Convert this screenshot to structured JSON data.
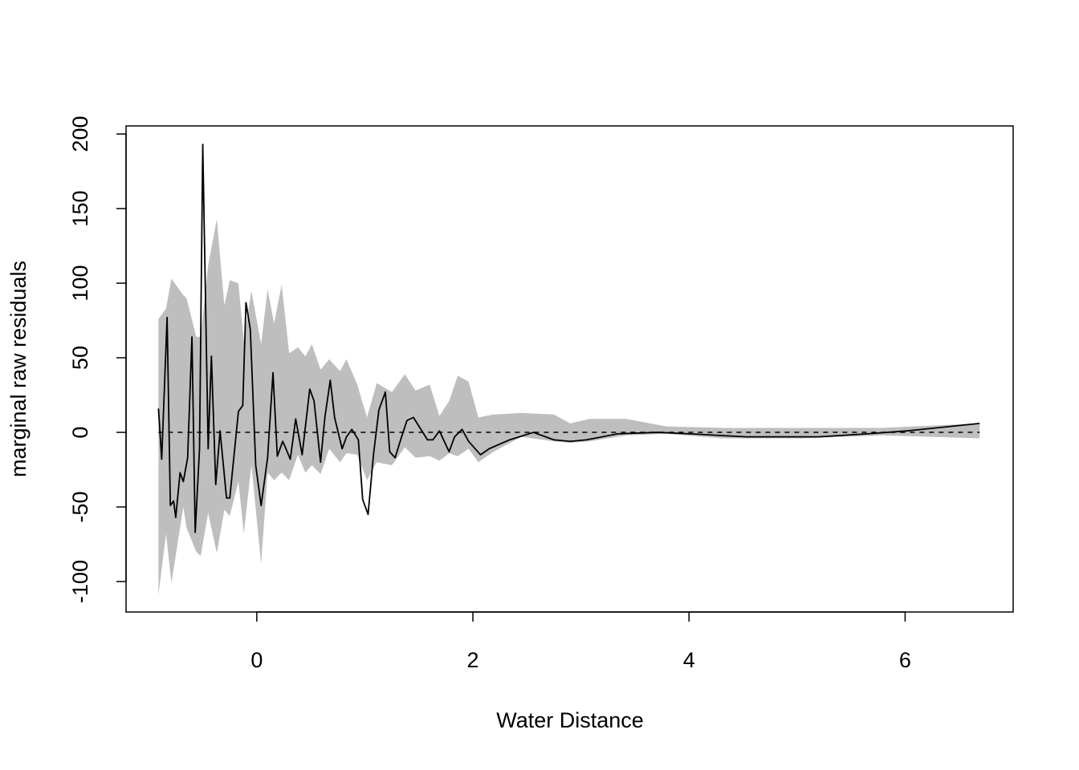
{
  "chart_data": {
    "type": "line",
    "x_label": "Water Distance",
    "y_label": "marginal raw residuals",
    "xlim": [
      -1.21,
      7.0
    ],
    "ylim": [
      -120.4,
      205.4
    ],
    "xticks": [
      0,
      2,
      4,
      6
    ],
    "yticks": [
      -100,
      -50,
      0,
      50,
      100,
      150,
      200
    ],
    "reference_line": 0,
    "band": {
      "color": "#bebebe",
      "x": [
        -0.91,
        -0.84,
        -0.79,
        -0.68,
        -0.65,
        -0.56,
        -0.52,
        -0.45,
        -0.37,
        -0.3,
        -0.25,
        -0.17,
        -0.12,
        -0.05,
        0.04,
        0.1,
        0.16,
        0.23,
        0.3,
        0.38,
        0.45,
        0.51,
        0.59,
        0.67,
        0.77,
        0.83,
        0.93,
        1.02,
        1.11,
        1.25,
        1.37,
        1.47,
        1.6,
        1.69,
        1.78,
        1.86,
        1.96,
        2.05,
        2.19,
        2.45,
        2.75,
        2.9,
        3.08,
        3.42,
        3.79,
        4.31,
        5.05,
        5.79,
        6.69
      ],
      "upper": [
        76,
        83,
        103,
        92,
        90,
        64,
        64,
        112,
        143,
        85,
        102,
        100,
        61,
        95,
        59,
        96,
        73,
        99,
        53,
        57,
        51,
        59,
        42,
        49,
        41,
        49,
        32,
        10,
        33,
        27,
        39,
        28,
        32,
        11,
        21,
        38,
        34,
        10,
        12,
        13,
        12,
        6,
        9,
        9,
        4,
        3,
        3,
        3,
        6
      ],
      "lower": [
        -109,
        -68,
        -101,
        -50,
        -64,
        -80,
        -83,
        -54,
        -81,
        -52,
        -56,
        -33,
        -68,
        -22,
        -88,
        -27,
        -32,
        -27,
        -32,
        -15,
        -27,
        -22,
        -28,
        -11,
        -20,
        -14,
        -15,
        -32,
        -20,
        -22,
        -10,
        -17,
        -16,
        -19,
        -14,
        -16,
        -11,
        -20,
        -13,
        -3,
        -6,
        -7,
        -6,
        -2,
        -1,
        -4,
        -4,
        -2,
        -4
      ]
    },
    "series": [
      {
        "color": "#000000",
        "x": [
          -0.91,
          -0.88,
          -0.83,
          -0.8,
          -0.77,
          -0.75,
          -0.71,
          -0.68,
          -0.64,
          -0.6,
          -0.57,
          -0.53,
          -0.5,
          -0.45,
          -0.42,
          -0.38,
          -0.34,
          -0.28,
          -0.25,
          -0.17,
          -0.13,
          -0.1,
          -0.06,
          -0.01,
          0.04,
          0.1,
          0.15,
          0.19,
          0.24,
          0.27,
          0.31,
          0.36,
          0.42,
          0.49,
          0.53,
          0.59,
          0.63,
          0.68,
          0.72,
          0.79,
          0.83,
          0.88,
          0.94,
          0.98,
          1.03,
          1.08,
          1.13,
          1.19,
          1.23,
          1.28,
          1.34,
          1.39,
          1.45,
          1.51,
          1.58,
          1.63,
          1.69,
          1.78,
          1.83,
          1.9,
          1.96,
          2.07,
          2.15,
          2.34,
          2.56,
          2.75,
          2.9,
          3.05,
          3.34,
          3.71,
          4.01,
          4.53,
          5.2,
          5.65,
          6.02,
          6.69
        ],
        "values": [
          16,
          -18,
          77,
          -49,
          -46,
          -57,
          -27,
          -33,
          -17,
          64,
          -67,
          -11,
          193,
          -11,
          51,
          -35,
          1,
          -44,
          -44,
          14,
          18,
          87,
          69,
          -22,
          -49,
          -17,
          40,
          -16,
          -6,
          -11,
          -18,
          9,
          -15,
          29,
          21,
          -20,
          10,
          35,
          10,
          -11,
          -3,
          2,
          -5,
          -45,
          -55,
          -15,
          15,
          27,
          -13,
          -17,
          -3,
          8,
          10,
          3,
          -5,
          -5,
          1,
          -13,
          -3,
          2,
          -6,
          -15,
          -11,
          -5,
          0,
          -5,
          -6,
          -5,
          -1,
          0,
          -1,
          -3,
          -3,
          -1,
          1,
          6
        ]
      }
    ]
  }
}
